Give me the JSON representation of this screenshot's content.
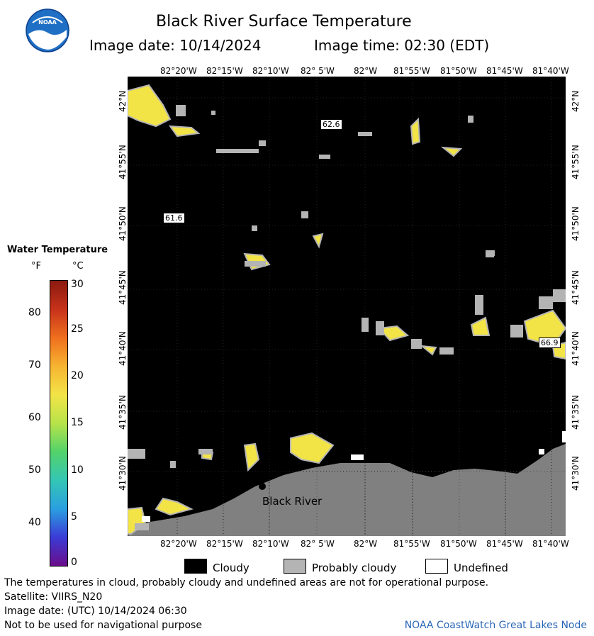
{
  "title": "Black River Surface Temperature",
  "image_date_label": "Image date: 10/14/2024",
  "image_time_label": "Image time: 02:30 (EDT)",
  "logo_text": "NOAA",
  "lon_ticks": [
    "82°20'W",
    "82°15'W",
    "82°10'W",
    "82° 5'W",
    "82°W",
    "81°55'W",
    "81°50'W",
    "81°45'W",
    "81°40'W"
  ],
  "lat_ticks": [
    "42°N",
    "41°55'N",
    "41°50'N",
    "41°45'N",
    "41°40'N",
    "41°35'N",
    "41°30'N"
  ],
  "legend": {
    "title": "Water Temperature",
    "unit_f": "°F",
    "unit_c": "°C",
    "f_ticks": [
      "80",
      "70",
      "60",
      "50",
      "40"
    ],
    "c_ticks": [
      "30",
      "25",
      "20",
      "15",
      "10",
      "5",
      "0"
    ],
    "colors": [
      "#6a0d8a",
      "#3b3bd6",
      "#2a9fe0",
      "#34c6b5",
      "#53d26a",
      "#b7e34a",
      "#f2e447",
      "#f7b431",
      "#ef6f1e",
      "#c7321a",
      "#8b1a10"
    ]
  },
  "place_label": "Black River",
  "temp_labels": [
    "62.6",
    "61.6",
    "66.9"
  ],
  "key": {
    "cloudy": "Cloudy",
    "probably_cloudy": "Probably cloudy",
    "undefined": "Undefined"
  },
  "footer": {
    "disclaimer": "The temperatures in cloud, probably cloudy and undefined areas are not for operational purpose.",
    "satellite": "Satellite: VIIRS_N20",
    "utc_date": "Image date: (UTC) 10/14/2024  06:30",
    "nav_note": "Not to be used for navigational purpose",
    "node": "NOAA CoastWatch Great Lakes Node"
  },
  "colors": {
    "cloud": "#000000",
    "land": "#808080",
    "probably_cloudy": "#b4b4b4",
    "warm_water": "#f2e447"
  }
}
